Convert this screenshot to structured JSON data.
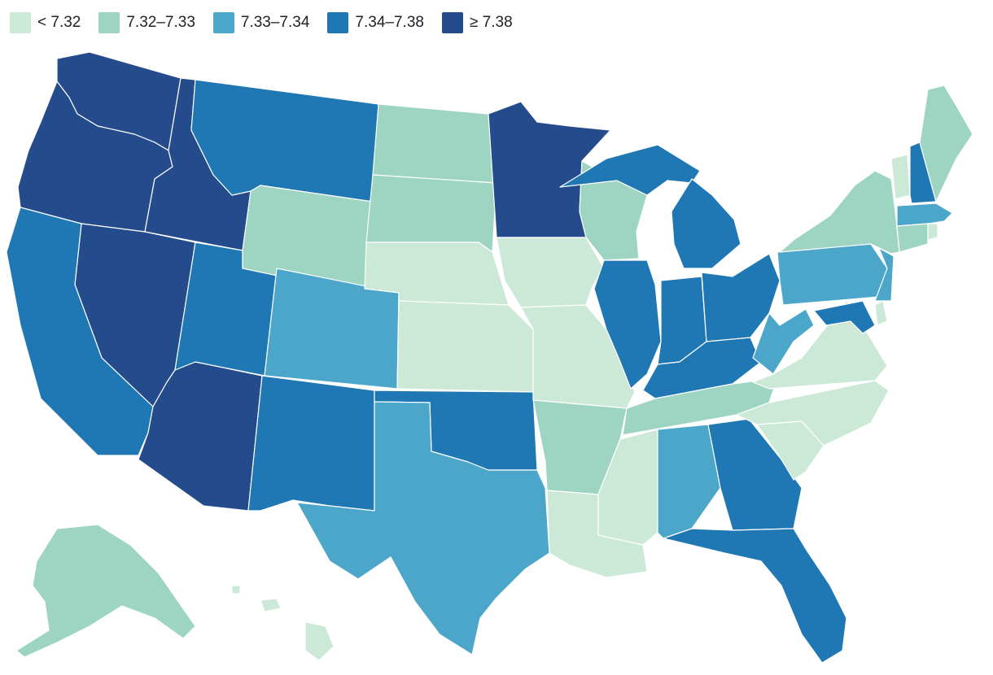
{
  "legend": {
    "items": [
      {
        "label": "< 7.32",
        "color": "#cce8d6"
      },
      {
        "label": "7.32–7.33",
        "color": "#9dd5c2"
      },
      {
        "label": "7.33–7.34",
        "color": "#4ba6ca"
      },
      {
        "label": "7.34–7.38",
        "color": "#1f77b4"
      },
      {
        "label": "≥ 7.38",
        "color": "#244b8c"
      }
    ]
  },
  "states": [
    {
      "id": "WA",
      "bin": 4
    },
    {
      "id": "OR",
      "bin": 4
    },
    {
      "id": "ID",
      "bin": 4
    },
    {
      "id": "NV",
      "bin": 4
    },
    {
      "id": "AZ",
      "bin": 4
    },
    {
      "id": "MN",
      "bin": 4
    },
    {
      "id": "CA",
      "bin": 3
    },
    {
      "id": "MT",
      "bin": 3
    },
    {
      "id": "UT",
      "bin": 3
    },
    {
      "id": "NM",
      "bin": 3
    },
    {
      "id": "OK",
      "bin": 3
    },
    {
      "id": "IL",
      "bin": 3
    },
    {
      "id": "IN",
      "bin": 3
    },
    {
      "id": "OH",
      "bin": 3
    },
    {
      "id": "MI",
      "bin": 3
    },
    {
      "id": "KY",
      "bin": 3
    },
    {
      "id": "GA",
      "bin": 3
    },
    {
      "id": "FL",
      "bin": 3
    },
    {
      "id": "NH",
      "bin": 3
    },
    {
      "id": "MD",
      "bin": 3
    },
    {
      "id": "CO",
      "bin": 2
    },
    {
      "id": "TX",
      "bin": 2
    },
    {
      "id": "AL",
      "bin": 2
    },
    {
      "id": "PA",
      "bin": 2
    },
    {
      "id": "WV",
      "bin": 2
    },
    {
      "id": "NJ",
      "bin": 2
    },
    {
      "id": "MA",
      "bin": 2
    },
    {
      "id": "ND",
      "bin": 1
    },
    {
      "id": "SD",
      "bin": 1
    },
    {
      "id": "WY",
      "bin": 1
    },
    {
      "id": "WI",
      "bin": 1
    },
    {
      "id": "AR",
      "bin": 1
    },
    {
      "id": "TN",
      "bin": 1
    },
    {
      "id": "NY",
      "bin": 1
    },
    {
      "id": "ME",
      "bin": 1
    },
    {
      "id": "CT",
      "bin": 1
    },
    {
      "id": "AK",
      "bin": 1
    },
    {
      "id": "NE",
      "bin": 0
    },
    {
      "id": "KS",
      "bin": 0
    },
    {
      "id": "IA",
      "bin": 0
    },
    {
      "id": "MO",
      "bin": 0
    },
    {
      "id": "LA",
      "bin": 0
    },
    {
      "id": "MS",
      "bin": 0
    },
    {
      "id": "VA",
      "bin": 0
    },
    {
      "id": "NC",
      "bin": 0
    },
    {
      "id": "SC",
      "bin": 0
    },
    {
      "id": "VT",
      "bin": 0
    },
    {
      "id": "DE",
      "bin": 0
    },
    {
      "id": "RI",
      "bin": 0
    },
    {
      "id": "HI",
      "bin": 0
    }
  ]
}
